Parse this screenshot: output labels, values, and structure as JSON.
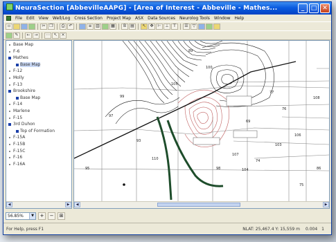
{
  "window": {
    "title": "NeuraSection [AbbevilleAAPG] - [Area of Interest - Abbeville - Mathes..."
  },
  "menu": [
    "File",
    "Edit",
    "View",
    "Well/Log",
    "Cross Section",
    "Project Map",
    "ASX",
    "Data Sources",
    "Neurolog Tools",
    "Window",
    "Help"
  ],
  "tree": [
    {
      "label": "Base Map",
      "level": 0
    },
    {
      "label": "F-6",
      "level": 0
    },
    {
      "label": "Mathes",
      "level": 0,
      "bullet": true
    },
    {
      "label": "Base Map",
      "level": 1,
      "bullet": true,
      "selected": true
    },
    {
      "label": "F-12",
      "level": 0
    },
    {
      "label": "Molly",
      "level": 0
    },
    {
      "label": "F-13",
      "level": 0
    },
    {
      "label": "Brookshire",
      "level": 0,
      "bullet": true
    },
    {
      "label": "Base Map",
      "level": 1,
      "bullet": true
    },
    {
      "label": "F-14",
      "level": 0
    },
    {
      "label": "Marlene",
      "level": 0
    },
    {
      "label": "F-15",
      "level": 0
    },
    {
      "label": "3rd Duhon",
      "level": 0,
      "bullet": true
    },
    {
      "label": "Top of Formation",
      "level": 1,
      "bullet": true
    },
    {
      "label": "F-15A",
      "level": 0
    },
    {
      "label": "F-15B",
      "level": 0
    },
    {
      "label": "F-15C",
      "level": 0
    },
    {
      "label": "F-16",
      "level": 0
    },
    {
      "label": "F-16A",
      "level": 0
    }
  ],
  "map": {
    "parcel_numbers": [
      "69",
      "74",
      "75",
      "76",
      "77",
      "86",
      "89",
      "93",
      "95",
      "97",
      "98",
      "99",
      "100",
      "103",
      "104",
      "105",
      "106",
      "107",
      "108",
      "110"
    ]
  },
  "zoom": {
    "value": "56.85%"
  },
  "status": {
    "help": "For Help, press F1",
    "coords": "NLAT: 25,467.4  Y: 15,559 m",
    "scale": "0.004",
    "val": "1"
  }
}
